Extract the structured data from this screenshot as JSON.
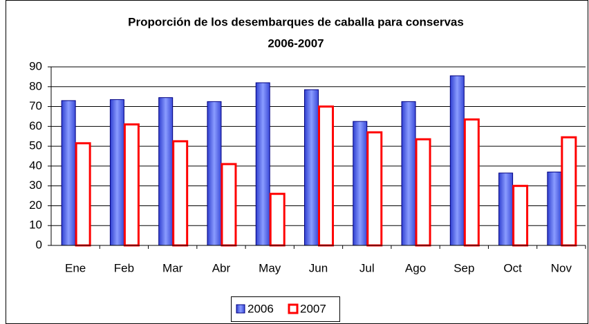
{
  "chart_data": {
    "type": "bar",
    "title": "Proporción de los desembarques de caballa para conservas",
    "subtitle": "2006-2007",
    "categories": [
      "Ene",
      "Feb",
      "Mar",
      "Abr",
      "May",
      "Jun",
      "Jul",
      "Ago",
      "Sep",
      "Oct",
      "Nov"
    ],
    "series": [
      {
        "name": "2006",
        "color": "#4f63e6",
        "values": [
          73,
          73.5,
          74.5,
          72.5,
          82,
          78.5,
          62.5,
          72.5,
          85.5,
          36.5,
          37
        ]
      },
      {
        "name": "2007",
        "color": "#ff0000",
        "values": [
          51.5,
          61,
          52.5,
          41,
          26,
          70,
          57,
          53.5,
          63.5,
          30,
          54.5
        ]
      }
    ],
    "ylim": [
      0,
      90
    ],
    "yticks": [
      0,
      10,
      20,
      30,
      40,
      50,
      60,
      70,
      80,
      90
    ],
    "grid": true,
    "legend": "bottom"
  }
}
